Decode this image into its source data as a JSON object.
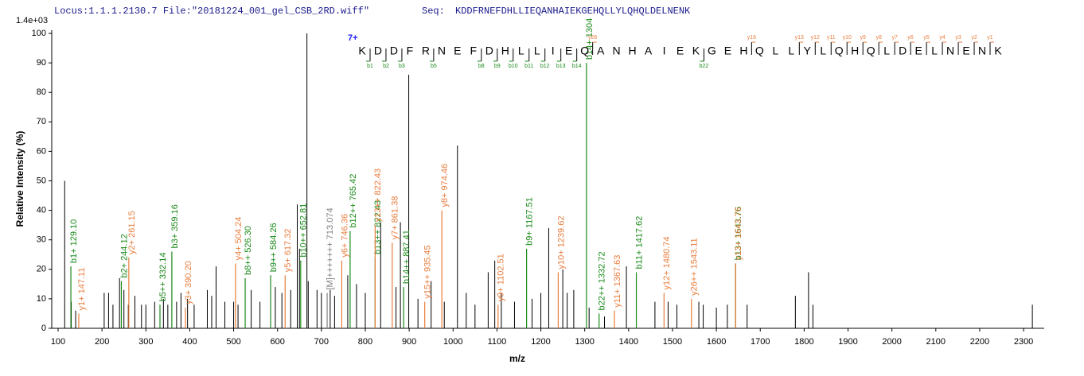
{
  "chart_data": {
    "type": "spectrum",
    "header_locus": "Locus:1.1.1.2130.7 File:\"20181224_001_gel_CSB_2RD.wiff\"",
    "header_seq_label": "Seq:",
    "header_sequence": "KDDFRNEFDHLLIEQANHAIEKGEHQLLYLQHQLDELNENK",
    "intensity_max_label": "1.4e+03",
    "ylabel": "Relative   Intensity (%)",
    "xlabel": "m/z",
    "xlim": [
      85.5,
      2347
    ],
    "ylim": [
      0,
      100
    ],
    "xticks": [
      100,
      200,
      300,
      400,
      500,
      600,
      700,
      800,
      900,
      1000,
      1100,
      1200,
      1300,
      1400,
      1500,
      1600,
      1700,
      1800,
      1900,
      2000,
      2100,
      2200,
      2300
    ],
    "yticks": [
      0,
      10,
      20,
      30,
      40,
      50,
      60,
      70,
      80,
      90,
      100
    ],
    "peaks": {
      "color": "#000000",
      "x": [
        115,
        130,
        140,
        205,
        215,
        225,
        240,
        250,
        260,
        275,
        290,
        300,
        320,
        340,
        350,
        370,
        380,
        395,
        410,
        440,
        450,
        460,
        480,
        500,
        510,
        540,
        560,
        595,
        610,
        630,
        645,
        650,
        667,
        670,
        690,
        700,
        720,
        730,
        760,
        780,
        800,
        835,
        870,
        880,
        899,
        920,
        950,
        980,
        1010,
        1030,
        1050,
        1080,
        1095,
        1110,
        1140,
        1180,
        1200,
        1218,
        1250,
        1260,
        1275,
        1310,
        1345,
        1395,
        1460,
        1490,
        1510,
        1560,
        1570,
        1600,
        1625,
        1670,
        1780,
        1810,
        1820,
        2320
      ],
      "values": [
        50,
        9,
        6,
        12,
        12,
        8,
        17,
        13,
        8,
        11,
        8,
        8,
        9,
        10,
        8,
        9,
        12,
        10,
        8,
        13,
        11,
        21,
        9,
        9,
        8,
        13,
        9,
        14,
        12,
        13,
        42,
        27,
        100,
        16,
        13,
        12,
        13,
        11,
        18,
        15,
        12,
        36,
        14,
        36,
        86,
        10,
        16,
        9,
        62,
        12,
        8,
        19,
        23,
        12,
        9,
        10,
        12,
        34,
        20,
        12,
        13,
        7,
        4,
        21,
        9,
        9,
        8,
        9,
        8,
        7,
        8,
        8,
        11,
        19,
        8,
        8
      ]
    },
    "series": [
      {
        "color": "#1a8a1a",
        "x": [
          129.1,
          244.12,
          332.14,
          359.16,
          526.3,
          584.26,
          652.81,
          765.42,
          822.43,
          887.41,
          1167.51,
          1304,
          1332.72,
          1417.62,
          1643.76
        ],
        "values": [
          21,
          16,
          8,
          26,
          17,
          18,
          23,
          33,
          24,
          14,
          27,
          90,
          5,
          19,
          22
        ],
        "labels": [
          "b1+ 129.10",
          "b2+ 244.12",
          "b5++ 332.14",
          "b3+ 359.16",
          "b8++ 526.30",
          "b9++ 584.26",
          "b10++ 652.81",
          "b12++ 765.42",
          "b13++ 822.43",
          "b14++ 887.41",
          "b9+ 1167.51",
          "b14+ 1304",
          "b22++ 1332.72",
          "b11+ 1417.62",
          "b13+ 1643.76"
        ]
      },
      {
        "color": "#e87d3e",
        "x": [
          147.11,
          261.15,
          390.2,
          504.24,
          617.32,
          746.36,
          822.43,
          861.38,
          935.45,
          974.46,
          1102.51,
          1239.62,
          1367.63,
          1480.74,
          1543.11,
          1643.76
        ],
        "values": [
          5,
          24,
          7,
          22,
          18,
          23,
          35,
          29,
          9,
          40,
          8,
          19,
          6,
          12,
          10,
          22
        ],
        "labels": [
          "y1+ 147.11",
          "y2+ 261.15",
          "y3+ 390.20",
          "y4+ 504.24",
          "y5+ 617.32",
          "y6+ 746.36",
          "y13++ 822.43",
          "y7+ 861.38",
          "y15++ 935.45",
          "y8+ 974.46",
          "y9+ 1102.51",
          "y10+ 1239.62",
          "y11+ 1367.63",
          "y12+ 1480.74",
          "y26++ 1543.11",
          "y13+ 1643.76"
        ]
      },
      {
        "color": "#808080",
        "x": [
          713.074
        ],
        "values": [
          12
        ],
        "labels": [
          "[M]+++++++ 713.074"
        ]
      }
    ],
    "sequence_map": {
      "charge": "7+",
      "residues": [
        "K",
        "D",
        "D",
        "F",
        "R",
        "N",
        "E",
        "F",
        "D",
        "H",
        "L",
        "L",
        "I",
        "E",
        "Q",
        "A",
        "N",
        "H",
        "A",
        "I",
        "E",
        "K",
        "G",
        "E",
        "H",
        "Q",
        "L",
        "L",
        "Y",
        "L",
        "Q",
        "H",
        "Q",
        "L",
        "D",
        "E",
        "L",
        "N",
        "E",
        "N",
        "K"
      ],
      "b_ions": [
        "b1",
        "b2",
        "b3",
        "b5",
        "b8",
        "b9",
        "b10",
        "b11",
        "b12",
        "b13",
        "b14",
        "b22"
      ],
      "y_ions": [
        "y26",
        "y16",
        "y13",
        "y12",
        "y11",
        "y10",
        "y9",
        "y8",
        "y7",
        "y6",
        "y5",
        "y4",
        "y3",
        "y2",
        "y1"
      ]
    }
  }
}
